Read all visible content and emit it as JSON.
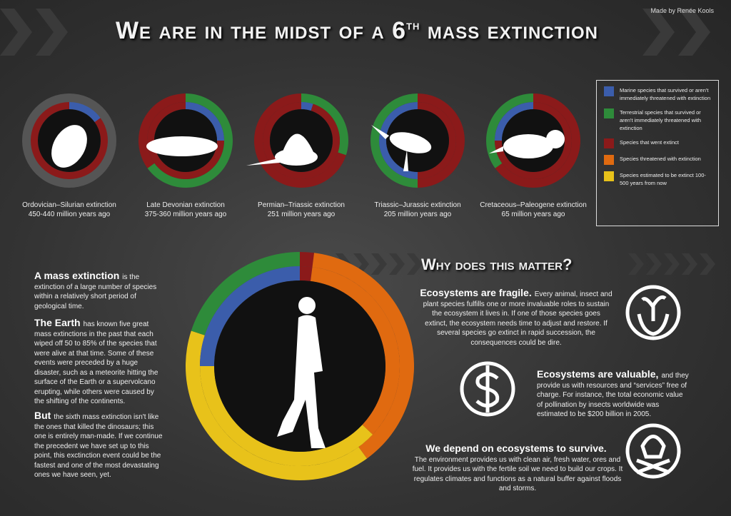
{
  "credit": "Made by Renée Kools",
  "title": {
    "main": "We are in the midst of a 6",
    "sup": "th",
    "rest": "mass extinction"
  },
  "legend": [
    {
      "label": "Marine species that survived or aren't immediately threatened with extinction",
      "color": "#3b5dab"
    },
    {
      "label": "Terrestrial species that survived or aren't immediately threatened with extinction",
      "color": "#2e8b3a"
    },
    {
      "label": "Species that went extinct",
      "color": "#8b1a1a"
    },
    {
      "label": "Species threatened with extinction",
      "color": "#e06a10"
    },
    {
      "label": "Species estimated to be extinct 100-500 years from now",
      "color": "#e8c21a"
    }
  ],
  "extinctions": [
    {
      "name": "Ordovician–Silurian extinction",
      "age": "450-440 million years ago",
      "rings": [
        {
          "values": [
            15,
            85
          ],
          "colors": [
            "#3b5dab",
            "#8b1a1a"
          ]
        }
      ]
    },
    {
      "name": "Late Devonian extinction",
      "age": "375-360 million years ago",
      "rings": [
        {
          "values": [
            65,
            35
          ],
          "colors": [
            "#2e8b3a",
            "#8b1a1a"
          ]
        },
        {
          "values": [
            25,
            75
          ],
          "colors": [
            "#3b5dab",
            "#8b1a1a"
          ]
        }
      ]
    },
    {
      "name": "Permian–Triassic extinction",
      "age": "251 million years ago",
      "rings": [
        {
          "values": [
            30,
            70
          ],
          "colors": [
            "#2e8b3a",
            "#8b1a1a"
          ]
        },
        {
          "values": [
            5,
            95
          ],
          "colors": [
            "#3b5dab",
            "#8b1a1a"
          ]
        }
      ]
    },
    {
      "name": "Triassic–Jurassic extinction",
      "age": "205 million years ago",
      "rings": [
        {
          "values": [
            50,
            50
          ],
          "colors": [
            "#8b1a1a",
            "#2e8b3a"
          ]
        },
        {
          "values": [
            50,
            50
          ],
          "colors": [
            "#8b1a1a",
            "#3b5dab"
          ]
        }
      ]
    },
    {
      "name": "Cretaceous–Paleogene extinction",
      "age": "65 million years ago",
      "rings": [
        {
          "values": [
            65,
            35
          ],
          "colors": [
            "#8b1a1a",
            "#2e8b3a"
          ]
        },
        {
          "values": [
            75,
            25
          ],
          "colors": [
            "#8b1a1a",
            "#3b5dab"
          ]
        }
      ]
    }
  ],
  "current": {
    "rings": [
      {
        "values": [
          2,
          38,
          40,
          20
        ],
        "colors": [
          "#8b1a1a",
          "#e06a10",
          "#e8c21a",
          "#2e8b3a"
        ]
      },
      {
        "values": [
          2,
          35,
          38,
          25
        ],
        "colors": [
          "#8b1a1a",
          "#e06a10",
          "#e8c21a",
          "#3b5dab"
        ]
      }
    ]
  },
  "intro": [
    {
      "heading": "A mass extinction",
      "text": "is the extinction of a large number of species within a relatively short period of geological time."
    },
    {
      "heading": "The Earth",
      "text": "has known five great mass extinctions in the past that each wiped off 50 to 85% of the species that were alive at that time. Some of these events were preceded by a huge disaster, such as a meteorite hitting the surface of the Earth or a supervolcano erupting, while others were caused by the shifting of the continents."
    },
    {
      "heading": "But",
      "text": "the sixth mass extinction isn't like the ones that killed the dinosaurs; this one is entirely man-made. If we continue the precedent we have set up to this point, this exctinction event could be the fastest and one of the most devastating ones we have seen, yet."
    }
  ],
  "why": {
    "title": "Why does this matter?",
    "items": [
      {
        "heading": "Ecosystems are fragile.",
        "text": "Every animal, insect and plant species fulfills one or more invaluable roles to sustain the ecosystem it lives in. If one of those species goes extinct, the ecosystem needs time to adjust and restore. If several species go extinct in rapid succession, the consequences could be dire."
      },
      {
        "heading": "Ecosystems are valuable,",
        "text": "and they provide us with resources and “services” free of charge. For instance, the total economic value of pollination by insects worldwide  was estimated to be $200 billion in 2005."
      },
      {
        "heading": "We depend on ecosystems to survive.",
        "text": "The environment provides us with clean air, fresh water, ores and fuel. It provides us with the fertile soil we need to build our crops. It regulates climates and functions as a natural buffer against floods and storms."
      }
    ]
  }
}
